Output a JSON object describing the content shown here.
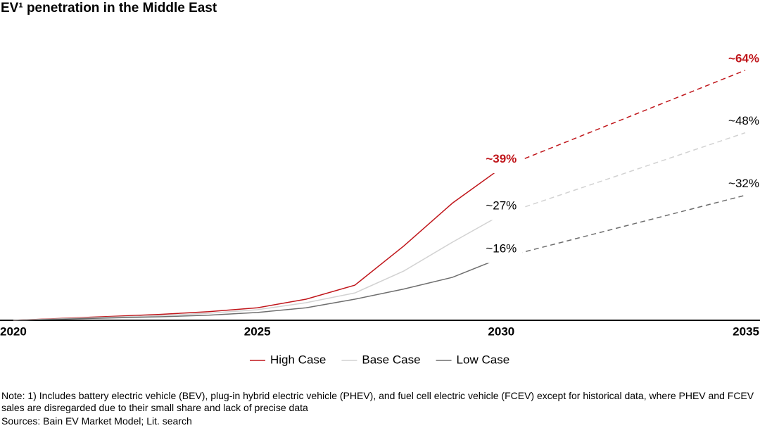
{
  "chart_data": {
    "type": "line",
    "title": "EV¹ penetration in the Middle East",
    "x": [
      2020,
      2021,
      2022,
      2023,
      2024,
      2025,
      2026,
      2027,
      2028,
      2029,
      2030,
      2035
    ],
    "xlim": [
      2020,
      2035
    ],
    "xticks": [
      2020,
      2025,
      2030,
      2035
    ],
    "ylim": [
      0,
      80
    ],
    "series": [
      {
        "name": "High Case",
        "color": "#c0161b",
        "values": [
          0,
          0.5,
          1,
          1.5,
          2.2,
          3.2,
          5.4,
          9,
          19,
          30,
          39,
          64
        ],
        "value_labels": [
          null,
          null,
          null,
          null,
          null,
          null,
          null,
          null,
          null,
          null,
          "~39%",
          "~64%"
        ]
      },
      {
        "name": "Base Case",
        "color": "#d2d2d2",
        "values": [
          0,
          0.4,
          0.8,
          1.2,
          1.8,
          2.7,
          4.5,
          7,
          12.6,
          20,
          27,
          48
        ],
        "value_labels": [
          null,
          null,
          null,
          null,
          null,
          null,
          null,
          null,
          null,
          null,
          "~27%",
          "~48%"
        ]
      },
      {
        "name": "Low Case",
        "color": "#6e6e6e",
        "values": [
          0,
          0.3,
          0.6,
          0.9,
          1.3,
          2,
          3.2,
          5.4,
          8,
          11,
          16,
          32
        ],
        "value_labels": [
          null,
          null,
          null,
          null,
          null,
          null,
          null,
          null,
          null,
          null,
          "~16%",
          "~32%"
        ]
      }
    ],
    "note": "Note: 1) Includes battery electric vehicle (BEV), plug-in hybrid electric vehicle (PHEV), and fuel cell electric vehicle (FCEV) except for historical data, where PHEV and FCEV sales are disregarded due to their small share and lack of precise data",
    "sources": "Sources: Bain EV Market Model; Lit. search"
  }
}
